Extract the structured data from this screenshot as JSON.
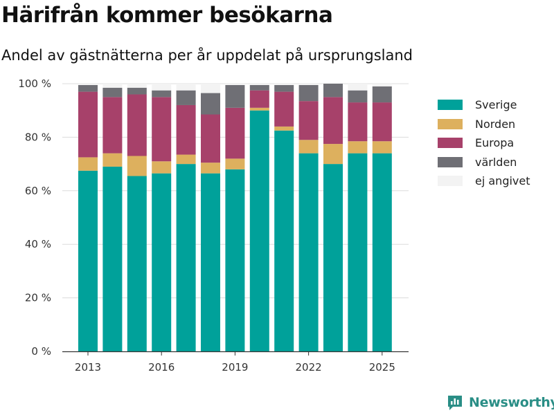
{
  "title": "Härifrån kommer besökarna",
  "subtitle": "Andel av gästnätterna per år uppdelat på ursprungsland",
  "logo_text": "Newsworthy",
  "colors": {
    "Sverige": "#00a19a",
    "Norden": "#ddb05e",
    "Europa": "#a7416a",
    "världen": "#6f6f75",
    "ej angivet": "#f3f3f3",
    "grid": "#dcdcdc",
    "axis": "#333333",
    "logo": "#2a8e86"
  },
  "chart_data": {
    "type": "bar",
    "stacked": true,
    "categories": [
      "2013",
      "2014",
      "2015",
      "2016",
      "2017",
      "2018",
      "2019",
      "2020",
      "2021",
      "2022",
      "2023",
      "2024",
      "2025"
    ],
    "series": [
      {
        "name": "Sverige",
        "values": [
          67.5,
          69,
          65.5,
          66.5,
          70,
          66.5,
          68,
          90,
          82.5,
          74,
          70,
          74,
          74
        ]
      },
      {
        "name": "Norden",
        "values": [
          5,
          5,
          7.5,
          4.5,
          3.5,
          4,
          4,
          1,
          1.5,
          5,
          7.5,
          4.5,
          4.5
        ]
      },
      {
        "name": "Europa",
        "values": [
          24.5,
          21,
          23,
          24,
          18.5,
          18,
          19,
          6.5,
          13,
          14.5,
          17.5,
          14.5,
          14.5
        ]
      },
      {
        "name": "världen",
        "values": [
          2.5,
          3.5,
          2.5,
          2.5,
          5.5,
          8,
          8.5,
          2,
          2.5,
          6,
          5,
          4.5,
          6
        ]
      },
      {
        "name": "ej angivet",
        "values": [
          0.5,
          1.5,
          1.5,
          2.5,
          2.5,
          3.5,
          0.5,
          0.5,
          0.5,
          0.5,
          0,
          2.5,
          1
        ]
      }
    ],
    "ylim": [
      0,
      100
    ],
    "yticks": [
      0,
      20,
      40,
      60,
      80,
      100
    ],
    "ytick_labels": [
      "0 %",
      "20 %",
      "40 %",
      "60 %",
      "80 %",
      "100 %"
    ],
    "xtick_labels": [
      "2013",
      "2016",
      "2019",
      "2022",
      "2025"
    ],
    "legend": [
      "Sverige",
      "Norden",
      "Europa",
      "världen",
      "ej angivet"
    ],
    "legend_position": "right",
    "grid": true
  }
}
